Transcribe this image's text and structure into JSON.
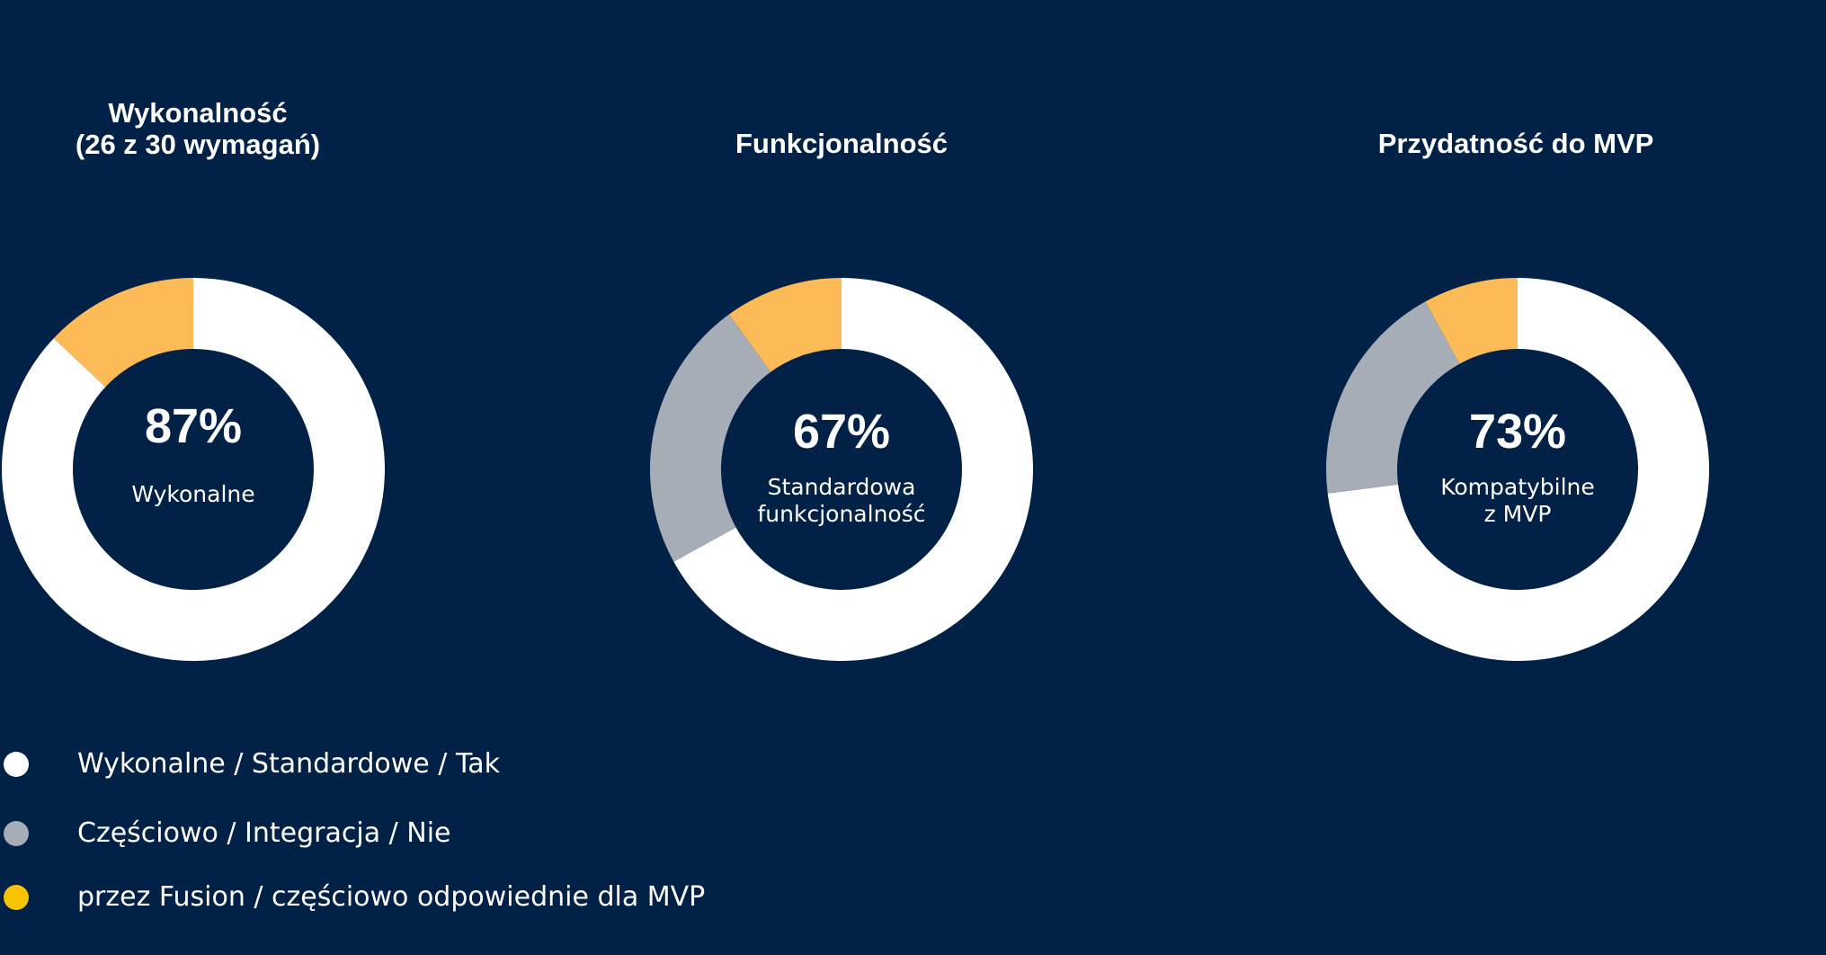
{
  "colors": {
    "background": "#022146",
    "white": "#ffffff",
    "gray": "#a7adb7",
    "yellow": "#fdbb57",
    "legend_yellow": "#f8c400"
  },
  "chart_data": [
    {
      "type": "pie",
      "title": "Wykonalność\n(26 z 30 wymagań)",
      "center_value": "87%",
      "center_label": [
        "Wykonalne"
      ],
      "slices": [
        {
          "category": "white",
          "value": 87
        },
        {
          "category": "gray",
          "value": 0
        },
        {
          "category": "yellow",
          "value": 13
        }
      ]
    },
    {
      "type": "pie",
      "title": "Funkcjonalność",
      "center_value": "67%",
      "center_label": [
        "Standardowa",
        "funkcjonalność"
      ],
      "slices": [
        {
          "category": "white",
          "value": 67
        },
        {
          "category": "gray",
          "value": 23
        },
        {
          "category": "yellow",
          "value": 10
        }
      ]
    },
    {
      "type": "pie",
      "title": "Przydatność do MVP",
      "center_value": "73%",
      "center_label": [
        "Kompatybilne",
        "z MVP"
      ],
      "slices": [
        {
          "category": "white",
          "value": 73
        },
        {
          "category": "gray",
          "value": 19
        },
        {
          "category": "yellow",
          "value": 8
        }
      ]
    }
  ],
  "legend": [
    {
      "label": "Wykonalne / Standardowe / Tak",
      "color_key": "white"
    },
    {
      "label": "Częściowo / Integracja / Nie",
      "color_key": "gray"
    },
    {
      "label": "przez Fusion / częściowo odpowiednie dla MVP",
      "color_key": "legend_yellow"
    }
  ]
}
